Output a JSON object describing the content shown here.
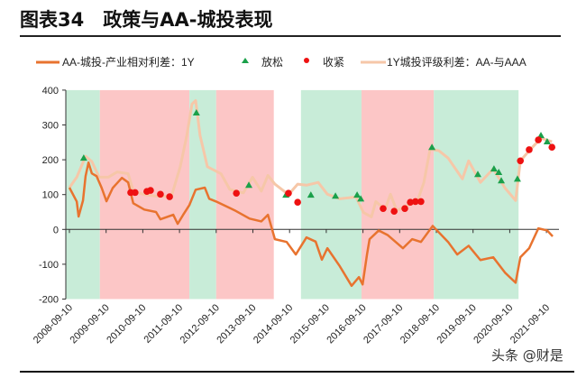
{
  "title": "图表34　政策与AA-城投表现",
  "watermark": "头条 @财是",
  "chart_data": {
    "type": "line",
    "title": "图表34　政策与AA-城投表现",
    "ylim": [
      -200,
      400
    ],
    "yticks": [
      400,
      300,
      200,
      100,
      0,
      -100,
      -200
    ],
    "xlim": [
      2008.6,
      2021.95
    ],
    "xtick_labels": [
      "2008-09-10",
      "2009-09-10",
      "2010-09-10",
      "2011-09-10",
      "2012-09-10",
      "2013-09-10",
      "2014-09-10",
      "2015-09-10",
      "2016-09-10",
      "2017-09-10",
      "2018-09-10",
      "2019-09-10",
      "2020-09-10",
      "2021-09-10"
    ],
    "legend": [
      "AA-城投-产业相对利差：1Y",
      "放松",
      "收紧",
      "1Y城投评级利差：AA-与AAA"
    ],
    "legend_position": "top",
    "colors": {
      "relative": "#e8732f",
      "easing": "#1aa04a",
      "tightening": "#ee1111",
      "rating": "#f6c7a8",
      "green_band": "#c8ecd8",
      "pink_band": "#fcc6c6"
    },
    "bands": [
      {
        "type": "easing",
        "from": 2008.59,
        "to": 2009.52
      },
      {
        "type": "tightening",
        "from": 2009.52,
        "to": 2011.96
      },
      {
        "type": "easing",
        "from": 2011.96,
        "to": 2012.69
      },
      {
        "type": "tightening",
        "from": 2012.69,
        "to": 2014.26
      },
      {
        "type": "easing",
        "from": 2015.0,
        "to": 2016.65
      },
      {
        "type": "tightening",
        "from": 2016.65,
        "to": 2018.62
      },
      {
        "type": "easing",
        "from": 2018.62,
        "to": 2020.93
      }
    ],
    "series": [
      {
        "name": "AA-城投-产业相对利差：1Y",
        "points": [
          [
            2008.69,
            120
          ],
          [
            2008.89,
            80
          ],
          [
            2008.94,
            37
          ],
          [
            2009.06,
            83
          ],
          [
            2009.13,
            153
          ],
          [
            2009.21,
            192
          ],
          [
            2009.3,
            161
          ],
          [
            2009.43,
            153
          ],
          [
            2009.57,
            119
          ],
          [
            2009.7,
            81
          ],
          [
            2009.87,
            119
          ],
          [
            2010.12,
            148
          ],
          [
            2010.29,
            135
          ],
          [
            2010.43,
            75
          ],
          [
            2010.73,
            57
          ],
          [
            2011.05,
            50
          ],
          [
            2011.17,
            29
          ],
          [
            2011.52,
            42
          ],
          [
            2011.64,
            16
          ],
          [
            2011.79,
            42
          ],
          [
            2011.96,
            70
          ],
          [
            2012.13,
            114
          ],
          [
            2012.38,
            120
          ],
          [
            2012.5,
            88
          ],
          [
            2012.69,
            80
          ],
          [
            2013.19,
            55
          ],
          [
            2013.6,
            31
          ],
          [
            2013.92,
            23
          ],
          [
            2014.1,
            42
          ],
          [
            2014.29,
            -28
          ],
          [
            2014.61,
            -36
          ],
          [
            2014.86,
            -72
          ],
          [
            2015.15,
            -23
          ],
          [
            2015.4,
            -35
          ],
          [
            2015.57,
            -87
          ],
          [
            2015.72,
            -54
          ],
          [
            2016.06,
            -106
          ],
          [
            2016.38,
            -162
          ],
          [
            2016.58,
            -137
          ],
          [
            2016.68,
            -158
          ],
          [
            2016.8,
            -72
          ],
          [
            2016.87,
            -28
          ],
          [
            2017.12,
            -3
          ],
          [
            2017.36,
            -16
          ],
          [
            2017.78,
            -54
          ],
          [
            2018.03,
            -28
          ],
          [
            2018.27,
            -36
          ],
          [
            2018.59,
            10
          ],
          [
            2019.01,
            -36
          ],
          [
            2019.26,
            -72
          ],
          [
            2019.57,
            -47
          ],
          [
            2019.89,
            -88
          ],
          [
            2020.24,
            -80
          ],
          [
            2020.56,
            -124
          ],
          [
            2020.85,
            -153
          ],
          [
            2020.98,
            -80
          ],
          [
            2021.22,
            -54
          ],
          [
            2021.47,
            3
          ],
          [
            2021.71,
            -3
          ],
          [
            2021.86,
            -20
          ]
        ]
      },
      {
        "name": "1Y城投评级利差：AA-与AAA",
        "points": [
          [
            2008.69,
            120
          ],
          [
            2008.89,
            150
          ],
          [
            2009.13,
            210
          ],
          [
            2009.3,
            195
          ],
          [
            2009.5,
            150
          ],
          [
            2009.75,
            150
          ],
          [
            2009.99,
            165
          ],
          [
            2010.29,
            160
          ],
          [
            2010.43,
            110
          ],
          [
            2010.73,
            100
          ],
          [
            2011.1,
            95
          ],
          [
            2011.47,
            95
          ],
          [
            2011.71,
            180
          ],
          [
            2011.89,
            270
          ],
          [
            2012.03,
            360
          ],
          [
            2012.13,
            370
          ],
          [
            2012.25,
            270
          ],
          [
            2012.45,
            180
          ],
          [
            2012.82,
            160
          ],
          [
            2013.06,
            115
          ],
          [
            2013.43,
            105
          ],
          [
            2013.68,
            150
          ],
          [
            2013.92,
            110
          ],
          [
            2014.1,
            155
          ],
          [
            2014.29,
            130
          ],
          [
            2014.66,
            100
          ],
          [
            2014.91,
            130
          ],
          [
            2015.15,
            127
          ],
          [
            2015.47,
            135
          ],
          [
            2015.72,
            101
          ],
          [
            2016.06,
            88
          ],
          [
            2016.5,
            93
          ],
          [
            2016.7,
            49
          ],
          [
            2016.92,
            36
          ],
          [
            2017.04,
            80
          ],
          [
            2017.29,
            57
          ],
          [
            2017.44,
            101
          ],
          [
            2017.61,
            54
          ],
          [
            2017.85,
            67
          ],
          [
            2018.17,
            80
          ],
          [
            2018.35,
            135
          ],
          [
            2018.52,
            231
          ],
          [
            2018.76,
            226
          ],
          [
            2019.01,
            205
          ],
          [
            2019.4,
            145
          ],
          [
            2019.57,
            197
          ],
          [
            2019.89,
            135
          ],
          [
            2020.24,
            174
          ],
          [
            2020.56,
            119
          ],
          [
            2020.85,
            83
          ],
          [
            2020.98,
            197
          ],
          [
            2021.22,
            226
          ],
          [
            2021.54,
            262
          ],
          [
            2021.84,
            252
          ]
        ]
      }
    ],
    "easing_points": [
      [
        2009.08,
        205
      ],
      [
        2012.15,
        335
      ],
      [
        2013.58,
        127
      ],
      [
        2014.59,
        99
      ],
      [
        2015.27,
        99
      ],
      [
        2015.94,
        96
      ],
      [
        2016.53,
        99
      ],
      [
        2016.63,
        88
      ],
      [
        2018.57,
        236
      ],
      [
        2019.82,
        158
      ],
      [
        2020.26,
        174
      ],
      [
        2020.39,
        164
      ],
      [
        2020.46,
        140
      ],
      [
        2020.9,
        145
      ],
      [
        2021.54,
        270
      ],
      [
        2021.71,
        252
      ]
    ],
    "tightening_points": [
      [
        2010.36,
        106
      ],
      [
        2010.48,
        106
      ],
      [
        2010.8,
        109
      ],
      [
        2010.9,
        112
      ],
      [
        2011.17,
        101
      ],
      [
        2011.42,
        94
      ],
      [
        2013.24,
        104
      ],
      [
        2014.66,
        104
      ],
      [
        2014.91,
        78
      ],
      [
        2017.24,
        60
      ],
      [
        2017.54,
        52
      ],
      [
        2017.83,
        60
      ],
      [
        2017.98,
        78
      ],
      [
        2018.12,
        80
      ],
      [
        2018.27,
        80
      ],
      [
        2020.98,
        197
      ],
      [
        2021.22,
        229
      ],
      [
        2021.47,
        257
      ],
      [
        2021.84,
        236
      ]
    ]
  }
}
